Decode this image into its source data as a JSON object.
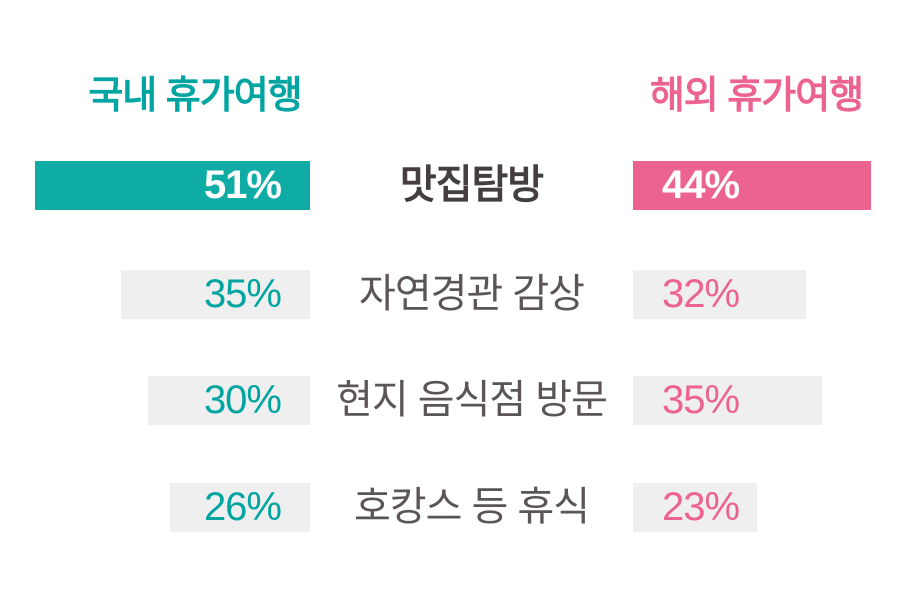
{
  "headers": {
    "left": {
      "label": "국내 휴가여행",
      "color": "#00a5a1"
    },
    "right": {
      "label": "해외 휴가여행",
      "color": "#ed6390"
    }
  },
  "chart_data": {
    "type": "bar",
    "orientation": "horizontal-diverging",
    "categories": [
      "맛집탐방",
      "자연경관 감상",
      "현지 음식점 방문",
      "호캉스 등 휴식"
    ],
    "series": [
      {
        "name": "국내 휴가여행",
        "side": "left",
        "unit": "%",
        "color": "#0faba5",
        "values": [
          51,
          35,
          30,
          26
        ]
      },
      {
        "name": "해외 휴가여행",
        "side": "right",
        "unit": "%",
        "color": "#ed6390",
        "values": [
          44,
          32,
          35,
          23
        ]
      }
    ],
    "value_range": [
      0,
      51
    ],
    "emphasized_category": "맛집탐방",
    "legend_position": "top",
    "grid": false
  },
  "rows": [
    {
      "category": "맛집탐방",
      "left_value": "51%",
      "right_value": "44%",
      "emphasized": true
    },
    {
      "category": "자연경관 감상",
      "left_value": "35%",
      "right_value": "32%",
      "emphasized": false
    },
    {
      "category": "현지 음식점 방문",
      "left_value": "30%",
      "right_value": "35%",
      "emphasized": false
    },
    {
      "category": "호캉스 등 휴식",
      "left_value": "26%",
      "right_value": "23%",
      "emphasized": false
    }
  ],
  "colors": {
    "teal_bar": "#0faba5",
    "teal_text": "#00a5a1",
    "pink": "#ed6390",
    "gray_bar": "#f0efef",
    "category_dark": "#443e3e",
    "category_gray": "#5b5555",
    "background": "#ffffff"
  }
}
